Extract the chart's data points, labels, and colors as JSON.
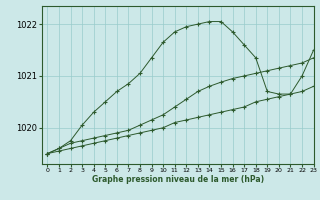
{
  "title": "Graphe pression niveau de la mer (hPa)",
  "bg_color": "#cce8e8",
  "grid_color": "#99cccc",
  "line_color": "#2d5a2d",
  "xlim": [
    -0.5,
    23
  ],
  "ylim": [
    1019.3,
    1022.35
  ],
  "yticks": [
    1020,
    1021,
    1022
  ],
  "xticks": [
    0,
    1,
    2,
    3,
    4,
    5,
    6,
    7,
    8,
    9,
    10,
    11,
    12,
    13,
    14,
    15,
    16,
    17,
    18,
    19,
    20,
    21,
    22,
    23
  ],
  "series1_x": [
    0,
    1,
    2,
    3,
    4,
    5,
    6,
    7,
    8,
    9,
    10,
    11,
    12,
    13,
    14,
    15,
    16,
    17,
    18,
    19,
    20,
    21,
    22,
    23
  ],
  "series1_y": [
    1019.5,
    1019.55,
    1019.6,
    1019.65,
    1019.7,
    1019.75,
    1019.8,
    1019.85,
    1019.9,
    1019.95,
    1020.0,
    1020.1,
    1020.15,
    1020.2,
    1020.25,
    1020.3,
    1020.35,
    1020.4,
    1020.5,
    1020.55,
    1020.6,
    1020.65,
    1020.7,
    1020.8
  ],
  "series2_x": [
    0,
    1,
    2,
    3,
    4,
    5,
    6,
    7,
    8,
    9,
    10,
    11,
    12,
    13,
    14,
    15,
    16,
    17,
    18,
    19,
    20,
    21,
    22,
    23
  ],
  "series2_y": [
    1019.5,
    1019.6,
    1019.7,
    1019.75,
    1019.8,
    1019.85,
    1019.9,
    1019.95,
    1020.05,
    1020.15,
    1020.25,
    1020.4,
    1020.55,
    1020.7,
    1020.8,
    1020.88,
    1020.95,
    1021.0,
    1021.05,
    1021.1,
    1021.15,
    1021.2,
    1021.25,
    1021.35
  ],
  "series3_x": [
    0,
    1,
    2,
    3,
    4,
    5,
    6,
    7,
    8,
    9,
    10,
    11,
    12,
    13,
    14,
    15,
    16,
    17,
    18,
    19,
    20,
    21,
    22,
    23
  ],
  "series3_y": [
    1019.5,
    1019.6,
    1019.75,
    1020.05,
    1020.3,
    1020.5,
    1020.7,
    1020.85,
    1021.05,
    1021.35,
    1021.65,
    1021.85,
    1021.95,
    1022.0,
    1022.05,
    1022.05,
    1021.85,
    1021.6,
    1021.35,
    1020.7,
    1020.65,
    1020.65,
    1021.0,
    1021.5
  ]
}
